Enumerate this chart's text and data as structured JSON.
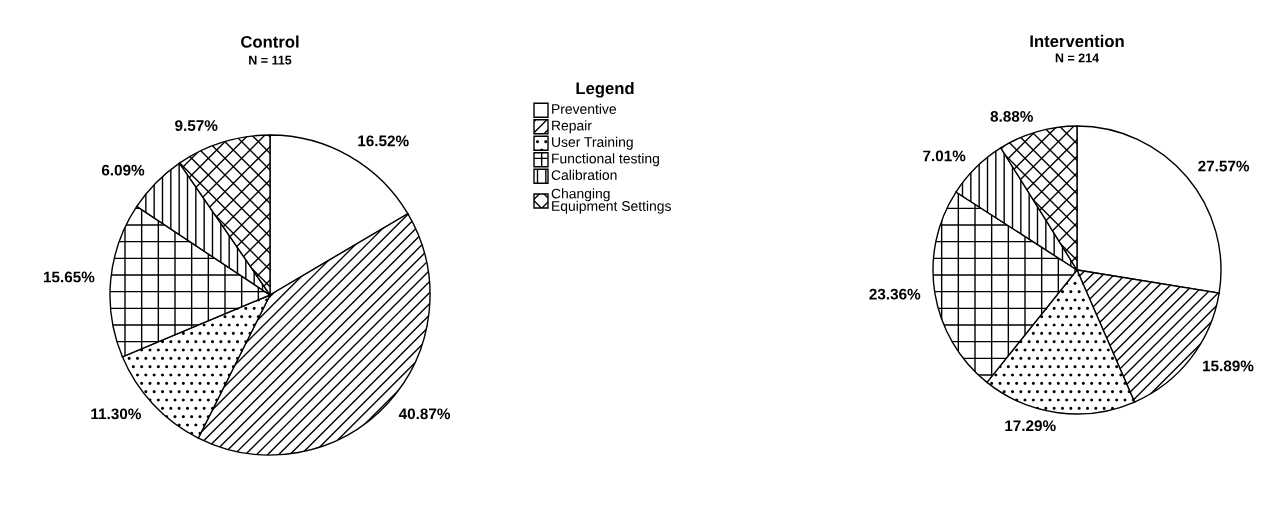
{
  "chart_data": [
    {
      "type": "pie",
      "title": "Control",
      "subtitle": "N = 115",
      "legend_title": "Legend",
      "legend": "right",
      "categories": [
        "Preventive",
        "Repair",
        "User Training",
        "Functional testing",
        "Calibration",
        "Changing\nEquipment Settings"
      ],
      "values": [
        16.52,
        40.87,
        11.3,
        15.65,
        6.09,
        9.57
      ],
      "value_labels": [
        "16.52%",
        "40.87%",
        "11.30%",
        "15.65%",
        "6.09%",
        "9.57%"
      ],
      "colors": [
        "#ffffff",
        "#ffffff",
        "#ffffff",
        "#ffffff",
        "#ffffff",
        "#ffffff"
      ]
    },
    {
      "type": "pie",
      "title": "Intervention",
      "subtitle": "N = 214",
      "values": [
        27.57,
        15.89,
        17.29,
        23.36,
        7.01,
        8.88
      ],
      "value_labels": [
        "27.57%",
        "15.89%",
        "17.29%",
        "23.36%",
        "7.01%",
        "8.88%"
      ],
      "colors": [
        "#ffffff",
        "#ffffff",
        "#ffffff",
        "#ffffff",
        "#ffffff",
        "#ffffff"
      ]
    }
  ]
}
